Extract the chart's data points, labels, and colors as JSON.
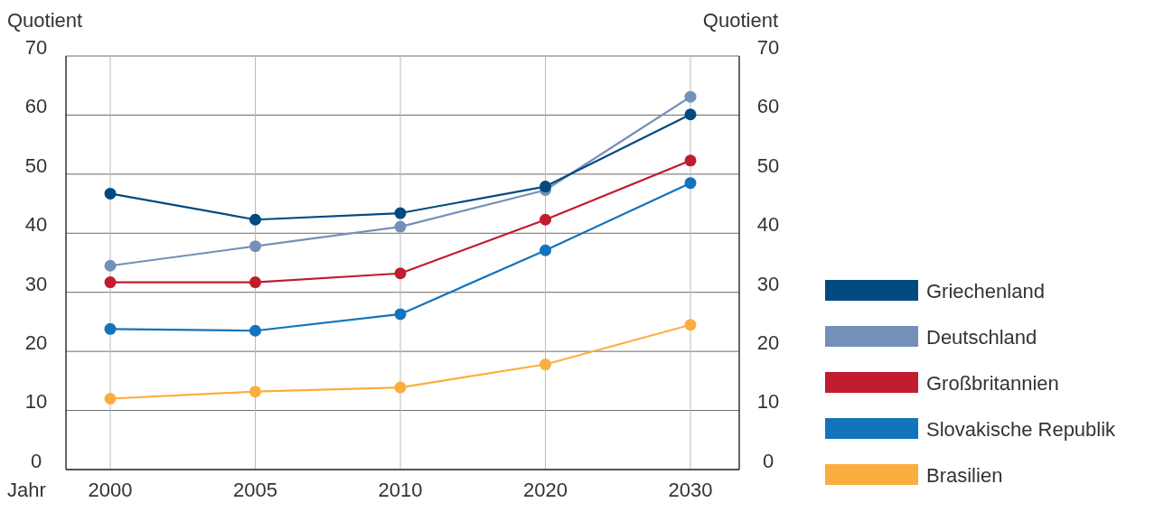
{
  "chart_data": {
    "type": "line",
    "xlabel": "Jahr",
    "ylabel": "Quotient",
    "y2label": "Quotient",
    "categories": [
      "2000",
      "2005",
      "2010",
      "2020",
      "2030"
    ],
    "ylim": [
      0,
      70
    ],
    "yticks": [
      0,
      10,
      20,
      30,
      40,
      50,
      60,
      70
    ],
    "y2lim": [
      0,
      70
    ],
    "y2ticks": [
      0,
      10,
      20,
      30,
      40,
      50,
      60,
      70
    ],
    "grid": true,
    "legend": "right",
    "marker": "circle",
    "line_style": "solid",
    "series": [
      {
        "name": "Griechenland",
        "color": "#004a80",
        "values": [
          46.7,
          42.3,
          43.4,
          47.9,
          60.1
        ]
      },
      {
        "name": "Deutschland",
        "color": "#7490b8",
        "values": [
          34.5,
          37.8,
          41.1,
          47.3,
          63.1
        ]
      },
      {
        "name": "Großbritannien",
        "color": "#c01d2e",
        "values": [
          31.7,
          31.7,
          33.2,
          42.3,
          52.3
        ]
      },
      {
        "name": "Slovakische Republik",
        "color": "#1274bd",
        "values": [
          23.8,
          23.5,
          26.3,
          37.1,
          48.5
        ]
      },
      {
        "name": "Brasilien",
        "color": "#fbae3f",
        "values": [
          12.0,
          13.2,
          13.9,
          17.8,
          24.5
        ]
      }
    ]
  }
}
